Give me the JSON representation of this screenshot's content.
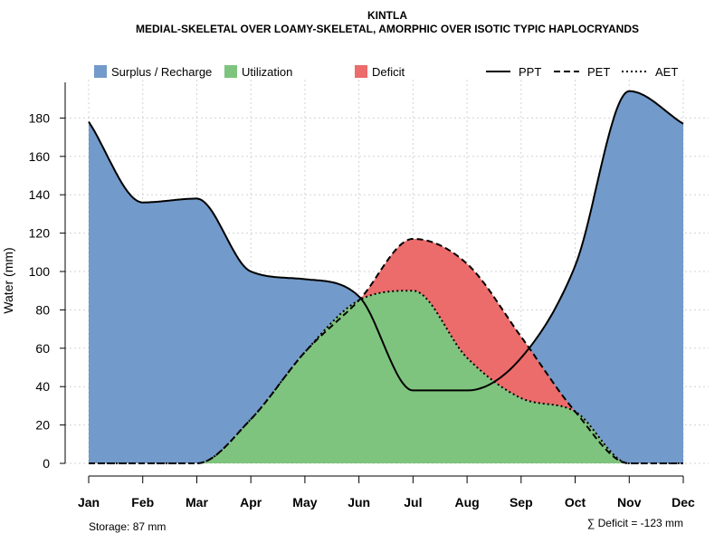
{
  "chart_data": {
    "type": "area",
    "title": "KINTLA",
    "subtitle": "MEDIAL-SKELETAL OVER LOAMY-SKELETAL, AMORPHIC OVER ISOTIC TYPIC HAPLOCRYANDS",
    "ylabel": "Water (mm)",
    "xlabel": "",
    "ylim": [
      0,
      200
    ],
    "y_ticks": [
      0,
      20,
      40,
      60,
      80,
      100,
      120,
      140,
      160,
      180
    ],
    "grid": true,
    "categories": [
      "Jan",
      "Feb",
      "Mar",
      "Apr",
      "May",
      "Jun",
      "Jul",
      "Aug",
      "Sep",
      "Oct",
      "Nov",
      "Dec"
    ],
    "series": [
      {
        "name": "PPT",
        "style": "solid",
        "values": [
          178,
          136,
          138,
          100,
          96,
          87,
          38,
          38,
          55,
          103,
          194,
          177
        ]
      },
      {
        "name": "PET",
        "style": "dashed",
        "values": [
          0,
          0,
          0,
          23,
          58,
          85,
          117,
          104,
          66,
          27,
          0,
          0
        ]
      },
      {
        "name": "AET",
        "style": "dotted",
        "values": [
          0,
          0,
          0,
          23,
          58,
          85,
          90,
          55,
          34,
          27,
          0,
          0
        ]
      }
    ],
    "legend": {
      "position": "top",
      "areas": [
        {
          "label": "Surplus / Recharge",
          "color": "#729ACA"
        },
        {
          "label": "Utilization",
          "color": "#7EC47E"
        },
        {
          "label": "Deficit",
          "color": "#EC6B6B"
        }
      ],
      "lines": [
        {
          "label": "PPT",
          "style": "solid"
        },
        {
          "label": "PET",
          "style": "dashed"
        },
        {
          "label": "AET",
          "style": "dotted"
        }
      ]
    },
    "annotations": {
      "storage": "Storage: 87 mm",
      "deficit": "∑ Deficit = -123 mm"
    }
  },
  "colors": {
    "surplus": "#729ACA",
    "utilization": "#7EC47E",
    "deficit": "#EC6B6B",
    "line": "#000000",
    "grid": "#D3D3D3"
  }
}
